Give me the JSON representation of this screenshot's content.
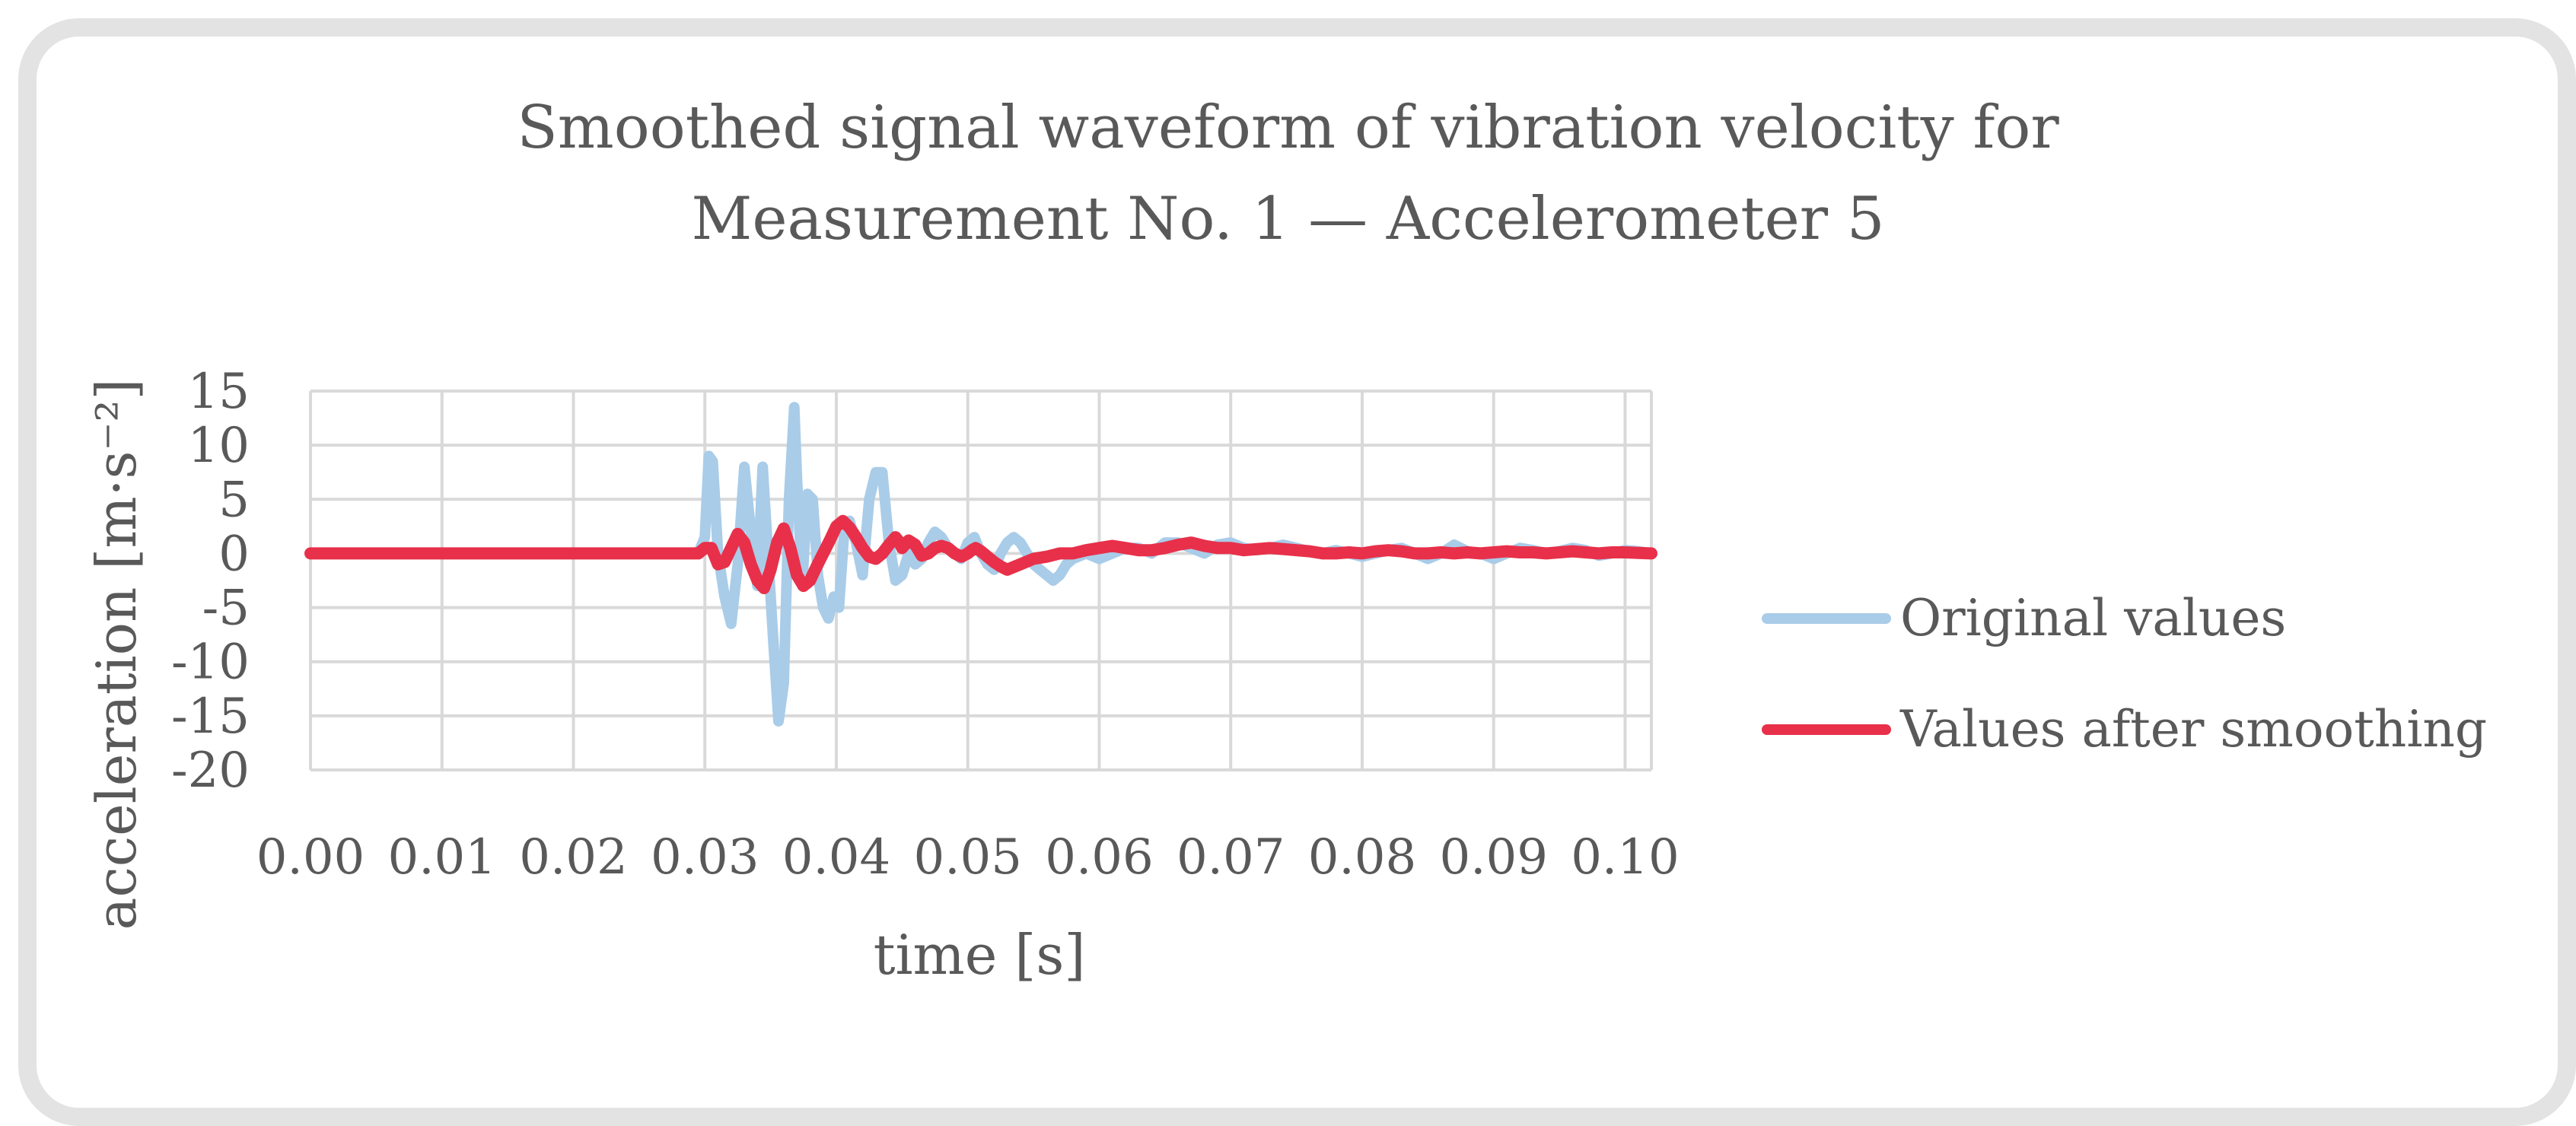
{
  "chart_data": {
    "type": "line",
    "title": [
      "Smoothed signal waveform of vibration velocity for",
      "Measurement No. 1 — Accelerometer 5"
    ],
    "xlabel": "time [s]",
    "ylabel": "acceleration [m·s⁻²]",
    "xlim": [
      0,
      0.102
    ],
    "ylim": [
      -20,
      15
    ],
    "xticks": [
      0.0,
      0.01,
      0.02,
      0.03,
      0.04,
      0.05,
      0.06,
      0.07,
      0.08,
      0.09,
      0.1
    ],
    "xtick_labels": [
      "0.00",
      "0.01",
      "0.02",
      "0.03",
      "0.04",
      "0.05",
      "0.06",
      "0.07",
      "0.08",
      "0.09",
      "0.10"
    ],
    "yticks": [
      15,
      10,
      5,
      0,
      -5,
      -10,
      -15,
      -20
    ],
    "ytick_labels": [
      "15",
      "10",
      "5",
      "0",
      "-5",
      "-10",
      "-15",
      "-20"
    ],
    "grid": true,
    "legend_position": "right",
    "series": [
      {
        "name": "Original values",
        "color": "#a9cce8",
        "x": [
          0,
          0.0285,
          0.0295,
          0.03,
          0.0303,
          0.0306,
          0.031,
          0.0315,
          0.032,
          0.0325,
          0.033,
          0.0335,
          0.034,
          0.0344,
          0.0348,
          0.0352,
          0.0356,
          0.036,
          0.0364,
          0.0368,
          0.037,
          0.0374,
          0.0378,
          0.0382,
          0.0386,
          0.039,
          0.0394,
          0.0398,
          0.0402,
          0.0406,
          0.041,
          0.0415,
          0.042,
          0.0425,
          0.043,
          0.0435,
          0.044,
          0.0445,
          0.045,
          0.0455,
          0.046,
          0.0465,
          0.047,
          0.0475,
          0.048,
          0.0485,
          0.049,
          0.0495,
          0.05,
          0.0505,
          0.051,
          0.0515,
          0.052,
          0.0525,
          0.053,
          0.0535,
          0.054,
          0.0545,
          0.055,
          0.0555,
          0.056,
          0.0565,
          0.057,
          0.0575,
          0.058,
          0.059,
          0.06,
          0.061,
          0.062,
          0.063,
          0.064,
          0.065,
          0.066,
          0.067,
          0.068,
          0.069,
          0.07,
          0.071,
          0.072,
          0.073,
          0.074,
          0.075,
          0.076,
          0.077,
          0.078,
          0.079,
          0.08,
          0.081,
          0.082,
          0.083,
          0.084,
          0.085,
          0.086,
          0.087,
          0.088,
          0.089,
          0.09,
          0.091,
          0.092,
          0.093,
          0.094,
          0.095,
          0.096,
          0.097,
          0.098,
          0.099,
          0.1,
          0.101,
          0.102
        ],
        "y": [
          0,
          0,
          0,
          1.5,
          9,
          8.5,
          0,
          -4,
          -6.5,
          -1,
          8,
          2,
          -3,
          8,
          0,
          -8,
          -15.5,
          -12,
          5,
          13.5,
          7,
          -3,
          5.5,
          5,
          -2,
          -5,
          -6,
          -4,
          -5,
          2,
          3,
          1,
          -2,
          5,
          7.5,
          7.5,
          1,
          -2.5,
          -2,
          0,
          -1,
          -0.5,
          1,
          2,
          1.5,
          0.5,
          0,
          -0.5,
          1,
          1.5,
          0,
          -1,
          -1.5,
          0,
          1,
          1.5,
          1,
          0,
          -1,
          -1.5,
          -2,
          -2.5,
          -2,
          -1,
          -0.5,
          0,
          -0.5,
          0,
          0.5,
          0.5,
          0,
          1,
          1,
          0.5,
          0,
          0.8,
          1,
          0.5,
          0.3,
          0.5,
          0.8,
          0.5,
          0.2,
          0,
          0.3,
          0,
          -0.3,
          0,
          0.3,
          0.5,
          0,
          -0.5,
          0,
          0.8,
          0.2,
          0,
          -0.5,
          0,
          0.5,
          0.3,
          0,
          0.2,
          0.5,
          0.3,
          -0.2,
          0,
          0.3,
          0.2,
          0
        ]
      },
      {
        "name": "Values after smoothing",
        "color": "#e8304a",
        "x": [
          0,
          0.0285,
          0.0295,
          0.03,
          0.0305,
          0.031,
          0.0315,
          0.032,
          0.0325,
          0.033,
          0.0335,
          0.034,
          0.0345,
          0.035,
          0.0355,
          0.036,
          0.0365,
          0.037,
          0.0375,
          0.038,
          0.0385,
          0.039,
          0.0395,
          0.04,
          0.0405,
          0.041,
          0.0415,
          0.042,
          0.0425,
          0.043,
          0.0435,
          0.044,
          0.0445,
          0.0447,
          0.045,
          0.0455,
          0.046,
          0.0465,
          0.047,
          0.0475,
          0.048,
          0.0485,
          0.049,
          0.0495,
          0.05,
          0.0503,
          0.0506,
          0.051,
          0.0515,
          0.052,
          0.0525,
          0.053,
          0.054,
          0.055,
          0.056,
          0.057,
          0.058,
          0.059,
          0.06,
          0.061,
          0.062,
          0.063,
          0.064,
          0.065,
          0.066,
          0.067,
          0.068,
          0.069,
          0.07,
          0.071,
          0.072,
          0.073,
          0.074,
          0.075,
          0.076,
          0.077,
          0.078,
          0.079,
          0.08,
          0.081,
          0.082,
          0.083,
          0.084,
          0.085,
          0.086,
          0.087,
          0.088,
          0.089,
          0.09,
          0.091,
          0.092,
          0.093,
          0.094,
          0.095,
          0.096,
          0.097,
          0.098,
          0.099,
          0.1,
          0.101,
          0.102
        ],
        "y": [
          0,
          0,
          0,
          0.5,
          0.5,
          -1,
          -0.8,
          0.5,
          1.8,
          1,
          -1,
          -2.5,
          -3.2,
          -1.5,
          1,
          2.3,
          0.5,
          -2,
          -3,
          -2.5,
          -1.2,
          0,
          1.2,
          2.5,
          3,
          2.4,
          1.5,
          0.5,
          -0.3,
          -0.5,
          0,
          0.8,
          1.5,
          1.2,
          0.5,
          1.2,
          0.8,
          -0.2,
          0,
          0.5,
          0.7,
          0.5,
          0,
          -0.3,
          0,
          0.3,
          0.5,
          0.2,
          -0.3,
          -0.8,
          -1.2,
          -1.5,
          -1,
          -0.5,
          -0.3,
          0,
          0,
          0.3,
          0.5,
          0.7,
          0.5,
          0.3,
          0.3,
          0.5,
          0.8,
          1,
          0.7,
          0.5,
          0.5,
          0.3,
          0.4,
          0.5,
          0.4,
          0.3,
          0.2,
          0,
          0,
          0.1,
          0,
          0.2,
          0.3,
          0.2,
          0,
          0,
          0.1,
          0,
          0.1,
          0,
          0.1,
          0.2,
          0.1,
          0.1,
          0,
          0.1,
          0.2,
          0.1,
          0,
          0.1,
          0.1,
          0.05,
          0
        ]
      }
    ]
  }
}
